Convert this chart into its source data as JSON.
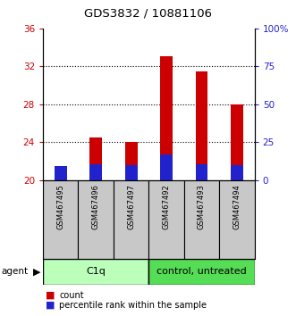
{
  "title": "GDS3832 / 10881106",
  "samples": [
    "GSM467495",
    "GSM467496",
    "GSM467497",
    "GSM467492",
    "GSM467493",
    "GSM467494"
  ],
  "count_values": [
    21.2,
    24.5,
    24.0,
    33.1,
    31.5,
    28.0
  ],
  "percentile_values": [
    21.5,
    21.7,
    21.6,
    22.7,
    21.7,
    21.6
  ],
  "bar_base": 20,
  "ylim": [
    20,
    36
  ],
  "yticks_left": [
    20,
    24,
    28,
    32,
    36
  ],
  "ytick_labels_left": [
    "20",
    "24",
    "28",
    "32",
    "36"
  ],
  "yticks_right": [
    20,
    24,
    28,
    32,
    36
  ],
  "ytick_labels_right": [
    "0",
    "25",
    "50",
    "75",
    "100%"
  ],
  "grid_yticks": [
    24,
    28,
    32
  ],
  "bar_color_red": "#cc0000",
  "bar_color_blue": "#2222cc",
  "bar_width": 0.35,
  "left_tick_color": "#cc0000",
  "right_tick_color": "#2222cc",
  "label_area_color": "#c8c8c8",
  "group1_color": "#bbffbb",
  "group2_color": "#55dd55",
  "group1_label": "C1q",
  "group2_label": "control, untreated",
  "legend_items": [
    "count",
    "percentile rank within the sample"
  ],
  "background_color": "#ffffff"
}
